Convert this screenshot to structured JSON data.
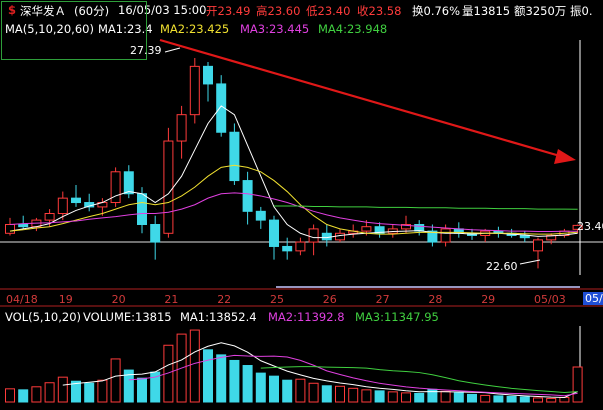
{
  "header": {
    "icon_glyph": "$",
    "stock_name": "深华发Ａ",
    "period": "(60分)",
    "datetime": "16/05/03 15:00",
    "open": "开23.49",
    "high": "高23.60",
    "low": "低23.40",
    "close": "收23.58",
    "turnover": "换0.76%",
    "volume": "量13815",
    "amount": "额3250万",
    "amplitude": "振0."
  },
  "ma": {
    "title": "MA(5,10,20,60)",
    "ma1": "MA1:23.4",
    "ma2": "MA2:23.425",
    "ma3": "MA3:23.445",
    "ma4": "MA4:23.948"
  },
  "vol": {
    "title": "VOL(5,10,20)",
    "volume": "VOLUME:13815",
    "ma1": "MA1:13852.4",
    "ma2": "MA2:11392.8",
    "ma3": "MA3:11347.95"
  },
  "annotations": {
    "high_label": "27.39",
    "low_label": "22.60",
    "right_price": "23.40",
    "right_date": "05/0"
  },
  "dates": [
    "04/18",
    "19",
    "20",
    "21",
    "22",
    "25",
    "26",
    "27",
    "28",
    "29",
    "05/03"
  ],
  "colors": {
    "up": "#ff3b3b",
    "down": "#3fd8e8",
    "ma1": "#ffffff",
    "ma2": "#f0e030",
    "ma3": "#e040e0",
    "ma4": "#40d040",
    "arrow": "#e01818",
    "background": "#000000"
  },
  "chart_data": {
    "type": "candlestick",
    "title": "深华发Ａ (60分)",
    "ylim": [
      22.2,
      27.8
    ],
    "x": [
      "04/18",
      "04/18",
      "04/18",
      "04/18",
      "19",
      "19",
      "19",
      "19",
      "20",
      "20",
      "20",
      "20",
      "21",
      "21",
      "21",
      "21",
      "22",
      "22",
      "22",
      "22",
      "25",
      "25",
      "25",
      "25",
      "26",
      "26",
      "26",
      "26",
      "27",
      "27",
      "27",
      "27",
      "28",
      "28",
      "28",
      "28",
      "29",
      "29",
      "29",
      "29",
      "05/03",
      "05/03",
      "05/03",
      "05/03"
    ],
    "ohlc": [
      [
        23.4,
        23.75,
        23.35,
        23.6
      ],
      [
        23.6,
        23.8,
        23.5,
        23.55
      ],
      [
        23.55,
        23.75,
        23.45,
        23.7
      ],
      [
        23.7,
        23.95,
        23.55,
        23.85
      ],
      [
        23.85,
        24.35,
        23.7,
        24.2
      ],
      [
        24.2,
        24.5,
        24.0,
        24.1
      ],
      [
        24.1,
        24.3,
        23.9,
        24.0
      ],
      [
        24.0,
        24.2,
        23.8,
        24.1
      ],
      [
        24.1,
        24.9,
        24.0,
        24.8
      ],
      [
        24.8,
        24.95,
        24.2,
        24.3
      ],
      [
        24.3,
        24.45,
        23.4,
        23.6
      ],
      [
        23.6,
        23.8,
        22.8,
        23.2
      ],
      [
        23.4,
        25.8,
        23.3,
        25.5
      ],
      [
        25.5,
        26.3,
        25.1,
        26.1
      ],
      [
        26.1,
        27.39,
        25.9,
        27.2
      ],
      [
        27.2,
        27.3,
        26.4,
        26.8
      ],
      [
        26.8,
        27.0,
        25.6,
        25.7
      ],
      [
        25.7,
        25.9,
        24.5,
        24.6
      ],
      [
        24.6,
        24.8,
        23.6,
        23.9
      ],
      [
        23.9,
        24.0,
        23.5,
        23.7
      ],
      [
        23.7,
        23.8,
        22.8,
        23.1
      ],
      [
        23.1,
        23.3,
        22.8,
        23.0
      ],
      [
        23.0,
        23.3,
        22.9,
        23.2
      ],
      [
        23.2,
        23.6,
        22.9,
        23.5
      ],
      [
        23.4,
        23.6,
        23.1,
        23.25
      ],
      [
        23.25,
        23.5,
        23.2,
        23.4
      ],
      [
        23.4,
        23.6,
        23.3,
        23.45
      ],
      [
        23.45,
        23.7,
        23.35,
        23.55
      ],
      [
        23.55,
        23.65,
        23.3,
        23.4
      ],
      [
        23.4,
        23.6,
        23.3,
        23.5
      ],
      [
        23.5,
        23.8,
        23.4,
        23.6
      ],
      [
        23.6,
        23.7,
        23.35,
        23.45
      ],
      [
        23.45,
        23.6,
        23.1,
        23.2
      ],
      [
        23.2,
        23.6,
        23.1,
        23.5
      ],
      [
        23.5,
        23.65,
        23.3,
        23.4
      ],
      [
        23.4,
        23.5,
        23.25,
        23.35
      ],
      [
        23.35,
        23.5,
        23.2,
        23.45
      ],
      [
        23.45,
        23.55,
        23.3,
        23.4
      ],
      [
        23.4,
        23.5,
        23.3,
        23.35
      ],
      [
        23.35,
        23.45,
        23.2,
        23.3
      ],
      [
        23.0,
        23.3,
        22.6,
        23.25
      ],
      [
        23.25,
        23.4,
        23.15,
        23.35
      ],
      [
        23.35,
        23.5,
        23.3,
        23.45
      ],
      [
        23.49,
        23.6,
        23.4,
        23.58
      ]
    ],
    "ma": {
      "MA1": [
        23.45,
        23.5,
        23.55,
        23.62,
        23.78,
        23.92,
        24.02,
        24.1,
        24.25,
        24.35,
        24.3,
        24.1,
        24.3,
        24.7,
        25.3,
        25.9,
        26.3,
        26.1,
        25.4,
        24.7,
        24.0,
        23.6,
        23.4,
        23.3,
        23.3,
        23.35,
        23.38,
        23.4,
        23.42,
        23.44,
        23.45,
        23.46,
        23.42,
        23.4,
        23.4,
        23.38,
        23.4,
        23.4,
        23.38,
        23.36,
        23.33,
        23.34,
        23.36,
        23.4
      ],
      "MA2": [
        23.45,
        23.48,
        23.52,
        23.55,
        23.62,
        23.7,
        23.78,
        23.85,
        23.95,
        24.05,
        24.1,
        24.05,
        24.1,
        24.25,
        24.45,
        24.7,
        24.9,
        24.95,
        24.9,
        24.8,
        24.6,
        24.35,
        24.05,
        23.8,
        23.6,
        23.5,
        23.45,
        23.4,
        23.38,
        23.38,
        23.4,
        23.42,
        23.42,
        23.42,
        23.42,
        23.41,
        23.4,
        23.4,
        23.4,
        23.39,
        23.38,
        23.38,
        23.4,
        23.425
      ],
      "MA3": [
        23.6,
        23.62,
        23.63,
        23.64,
        23.66,
        23.68,
        23.72,
        23.75,
        23.78,
        23.82,
        23.85,
        23.85,
        23.88,
        23.95,
        24.05,
        24.2,
        24.3,
        24.32,
        24.3,
        24.25,
        24.18,
        24.1,
        24.0,
        23.9,
        23.82,
        23.75,
        23.7,
        23.65,
        23.62,
        23.6,
        23.58,
        23.56,
        23.54,
        23.52,
        23.5,
        23.48,
        23.47,
        23.46,
        23.45,
        23.45,
        23.44,
        23.44,
        23.445,
        23.445
      ],
      "MA4": [
        null,
        null,
        null,
        null,
        null,
        null,
        null,
        null,
        null,
        null,
        null,
        null,
        null,
        null,
        null,
        null,
        null,
        null,
        null,
        null,
        24.02,
        24.02,
        24.02,
        24.01,
        24.01,
        24.0,
        24.0,
        24.0,
        23.99,
        23.99,
        23.99,
        23.98,
        23.98,
        23.98,
        23.97,
        23.97,
        23.97,
        23.96,
        23.96,
        23.96,
        23.95,
        23.95,
        23.95,
        23.948
      ]
    },
    "volume": [
      5200,
      4800,
      6000,
      7600,
      9800,
      8200,
      7400,
      8600,
      17000,
      12600,
      9400,
      11800,
      22400,
      26800,
      28400,
      20600,
      18600,
      16400,
      14400,
      11400,
      10200,
      8600,
      9000,
      7400,
      6400,
      6200,
      5400,
      4800,
      4400,
      4000,
      3600,
      3400,
      5000,
      4200,
      3600,
      3000,
      2600,
      2400,
      2200,
      2000,
      1600,
      1400,
      1800,
      13815
    ],
    "ylim_volume": [
      0,
      30000
    ]
  }
}
